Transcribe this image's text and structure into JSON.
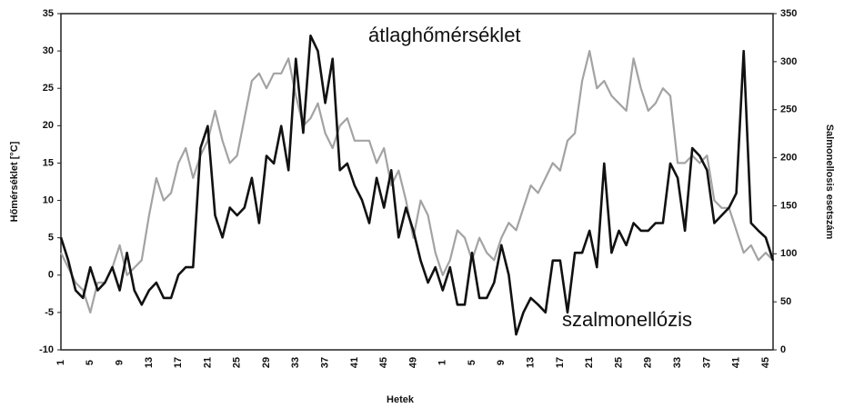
{
  "chart_data": {
    "type": "line",
    "annotations": [
      "átlaghőmérséklet",
      "szalmonellózis"
    ],
    "x_label": "Hetek",
    "y_label": "Hőmérséklet [°C]",
    "y2_label": "Salmonellosis esetszám",
    "categories": [
      "1",
      null,
      null,
      null,
      "5",
      null,
      null,
      null,
      "9",
      null,
      null,
      null,
      "13",
      null,
      null,
      null,
      "17",
      null,
      null,
      null,
      "21",
      null,
      null,
      null,
      "25",
      null,
      null,
      null,
      "29",
      null,
      null,
      null,
      "33",
      null,
      null,
      null,
      "37",
      null,
      null,
      null,
      "41",
      null,
      null,
      null,
      "45",
      null,
      null,
      null,
      "49",
      null,
      null,
      null,
      "1",
      null,
      null,
      null,
      "5",
      null,
      null,
      null,
      "9",
      null,
      null,
      null,
      "13",
      null,
      null,
      null,
      "17",
      null,
      null,
      null,
      "21",
      null,
      null,
      null,
      "25",
      null,
      null,
      null,
      "29",
      null,
      null,
      null,
      "33",
      null,
      null,
      null,
      "37",
      null,
      null,
      null,
      "41",
      null,
      null,
      null,
      "45",
      null
    ],
    "series": [
      {
        "name": "átlaghőmérséklet",
        "color": "#a3a3a3",
        "axis": "y",
        "values": [
          3,
          1,
          -1,
          -2,
          -5,
          -1,
          -1,
          1,
          4,
          0,
          1,
          2,
          8,
          13,
          10,
          11,
          15,
          17,
          13,
          16,
          18,
          22,
          18,
          15,
          16,
          21,
          26,
          27,
          25,
          27,
          27,
          29,
          24,
          20,
          21,
          23,
          19,
          17,
          20,
          21,
          18,
          18,
          18,
          15,
          17,
          12,
          14,
          10,
          5,
          10,
          8,
          3,
          0,
          2,
          6,
          5,
          2,
          5,
          3,
          2,
          5,
          7,
          6,
          9,
          12,
          11,
          13,
          15,
          14,
          18,
          19,
          26,
          30,
          25,
          26,
          24,
          23,
          22,
          29,
          25,
          22,
          23,
          25,
          24,
          15,
          15,
          16,
          15,
          16,
          10,
          9,
          9,
          6,
          3,
          4,
          2,
          3,
          2
        ]
      },
      {
        "name": "szalmonellózis",
        "color": "#111111",
        "axis": "y2",
        "values": [
          117,
          93,
          62,
          54,
          86,
          62,
          70,
          86,
          62,
          101,
          62,
          47,
          62,
          70,
          54,
          54,
          78,
          86,
          86,
          210,
          233,
          140,
          117,
          148,
          140,
          148,
          179,
          132,
          202,
          194,
          233,
          187,
          303,
          226,
          327,
          311,
          257,
          303,
          187,
          194,
          171,
          156,
          132,
          179,
          148,
          187,
          117,
          148,
          124,
          93,
          70,
          86,
          62,
          86,
          47,
          47,
          101,
          54,
          54,
          70,
          109,
          78,
          16,
          39,
          54,
          47,
          39,
          93,
          93,
          39,
          101,
          101,
          124,
          86,
          194,
          101,
          124,
          109,
          132,
          124,
          124,
          132,
          132,
          194,
          179,
          124,
          210,
          202,
          187,
          132,
          140,
          148,
          163,
          311,
          132,
          124,
          117,
          93
        ]
      }
    ],
    "ylim": [
      -10,
      35
    ],
    "yticks": [
      -10,
      -5,
      0,
      5,
      10,
      15,
      20,
      25,
      30,
      35
    ],
    "y2lim": [
      0,
      350
    ],
    "y2ticks": [
      0,
      50,
      100,
      150,
      200,
      250,
      300,
      350
    ],
    "grid": false
  }
}
